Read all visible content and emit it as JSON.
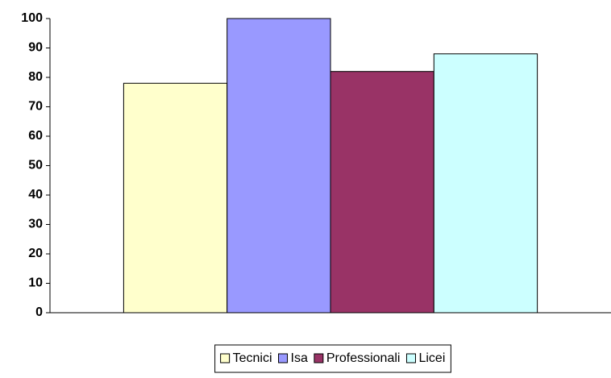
{
  "chart_data": {
    "type": "bar",
    "categories": [
      null
    ],
    "series": [
      {
        "name": "Tecnici",
        "color": "#FFFFCC",
        "values": [
          78
        ]
      },
      {
        "name": "Isa",
        "color": "#9999FF",
        "values": [
          100
        ]
      },
      {
        "name": "Professionali",
        "color": "#993366",
        "values": [
          82
        ]
      },
      {
        "name": "Licei",
        "color": "#CCFFFF",
        "values": [
          88
        ]
      }
    ],
    "ylim": [
      0,
      100
    ],
    "yticks": [
      0,
      10,
      20,
      30,
      40,
      50,
      60,
      70,
      80,
      90,
      100
    ],
    "grid": false,
    "legend": "bottom"
  }
}
